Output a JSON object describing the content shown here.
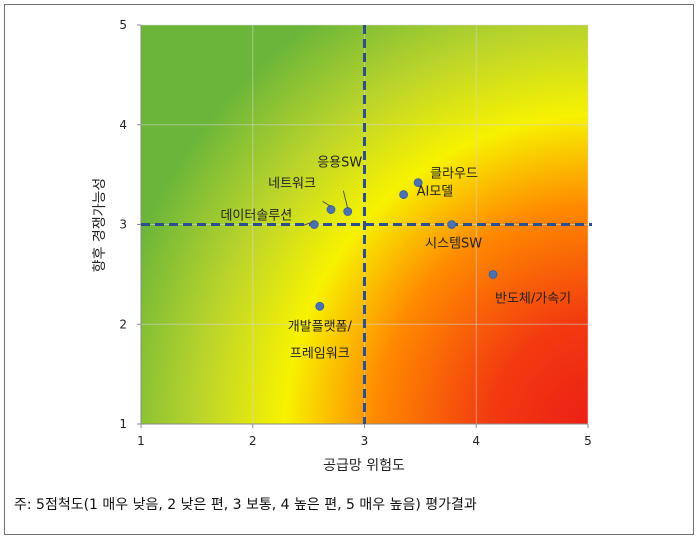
{
  "chart_data": {
    "type": "scatter",
    "title": "",
    "xlabel": "공급망 위험도",
    "ylabel": "향후 경쟁가능성",
    "xlim": [
      1,
      5
    ],
    "ylim": [
      1,
      5
    ],
    "xticks": [
      "1",
      "2",
      "3",
      "4",
      "5"
    ],
    "yticks": [
      "1",
      "2",
      "3",
      "4",
      "5"
    ],
    "grid": true,
    "reference_lines": {
      "x": 3,
      "y": 3
    },
    "background": "gradient: green (top-left) → yellow → orange → red (bottom-right)",
    "points": [
      {
        "label": "응용SW",
        "x": 2.85,
        "y": 3.13
      },
      {
        "label": "네트워크",
        "x": 2.7,
        "y": 3.15
      },
      {
        "label": "데이터솔루션",
        "x": 2.55,
        "y": 3.0
      },
      {
        "label": "클라우드",
        "x": 3.48,
        "y": 3.42
      },
      {
        "label": "AI모델",
        "x": 3.35,
        "y": 3.3
      },
      {
        "label": "시스템SW",
        "x": 3.78,
        "y": 3.0
      },
      {
        "label": "반도체/가속기",
        "x": 4.15,
        "y": 2.5
      },
      {
        "label": "개발플랫폼/\n프레임워크",
        "x": 2.6,
        "y": 2.18
      }
    ]
  },
  "footnote": "주: 5점척도(1 매우 낮음, 2 낮은 편, 3 보통, 4 높은 편, 5 매우 높음) 평가결과",
  "colors": {
    "point": "#4a72b0",
    "reference_line": "#2f4f8a",
    "grid": "#d6d6d6",
    "green": "#6ab53a",
    "yellow": "#f7f200",
    "orange": "#ff8a00",
    "red": "#ec1c16"
  }
}
